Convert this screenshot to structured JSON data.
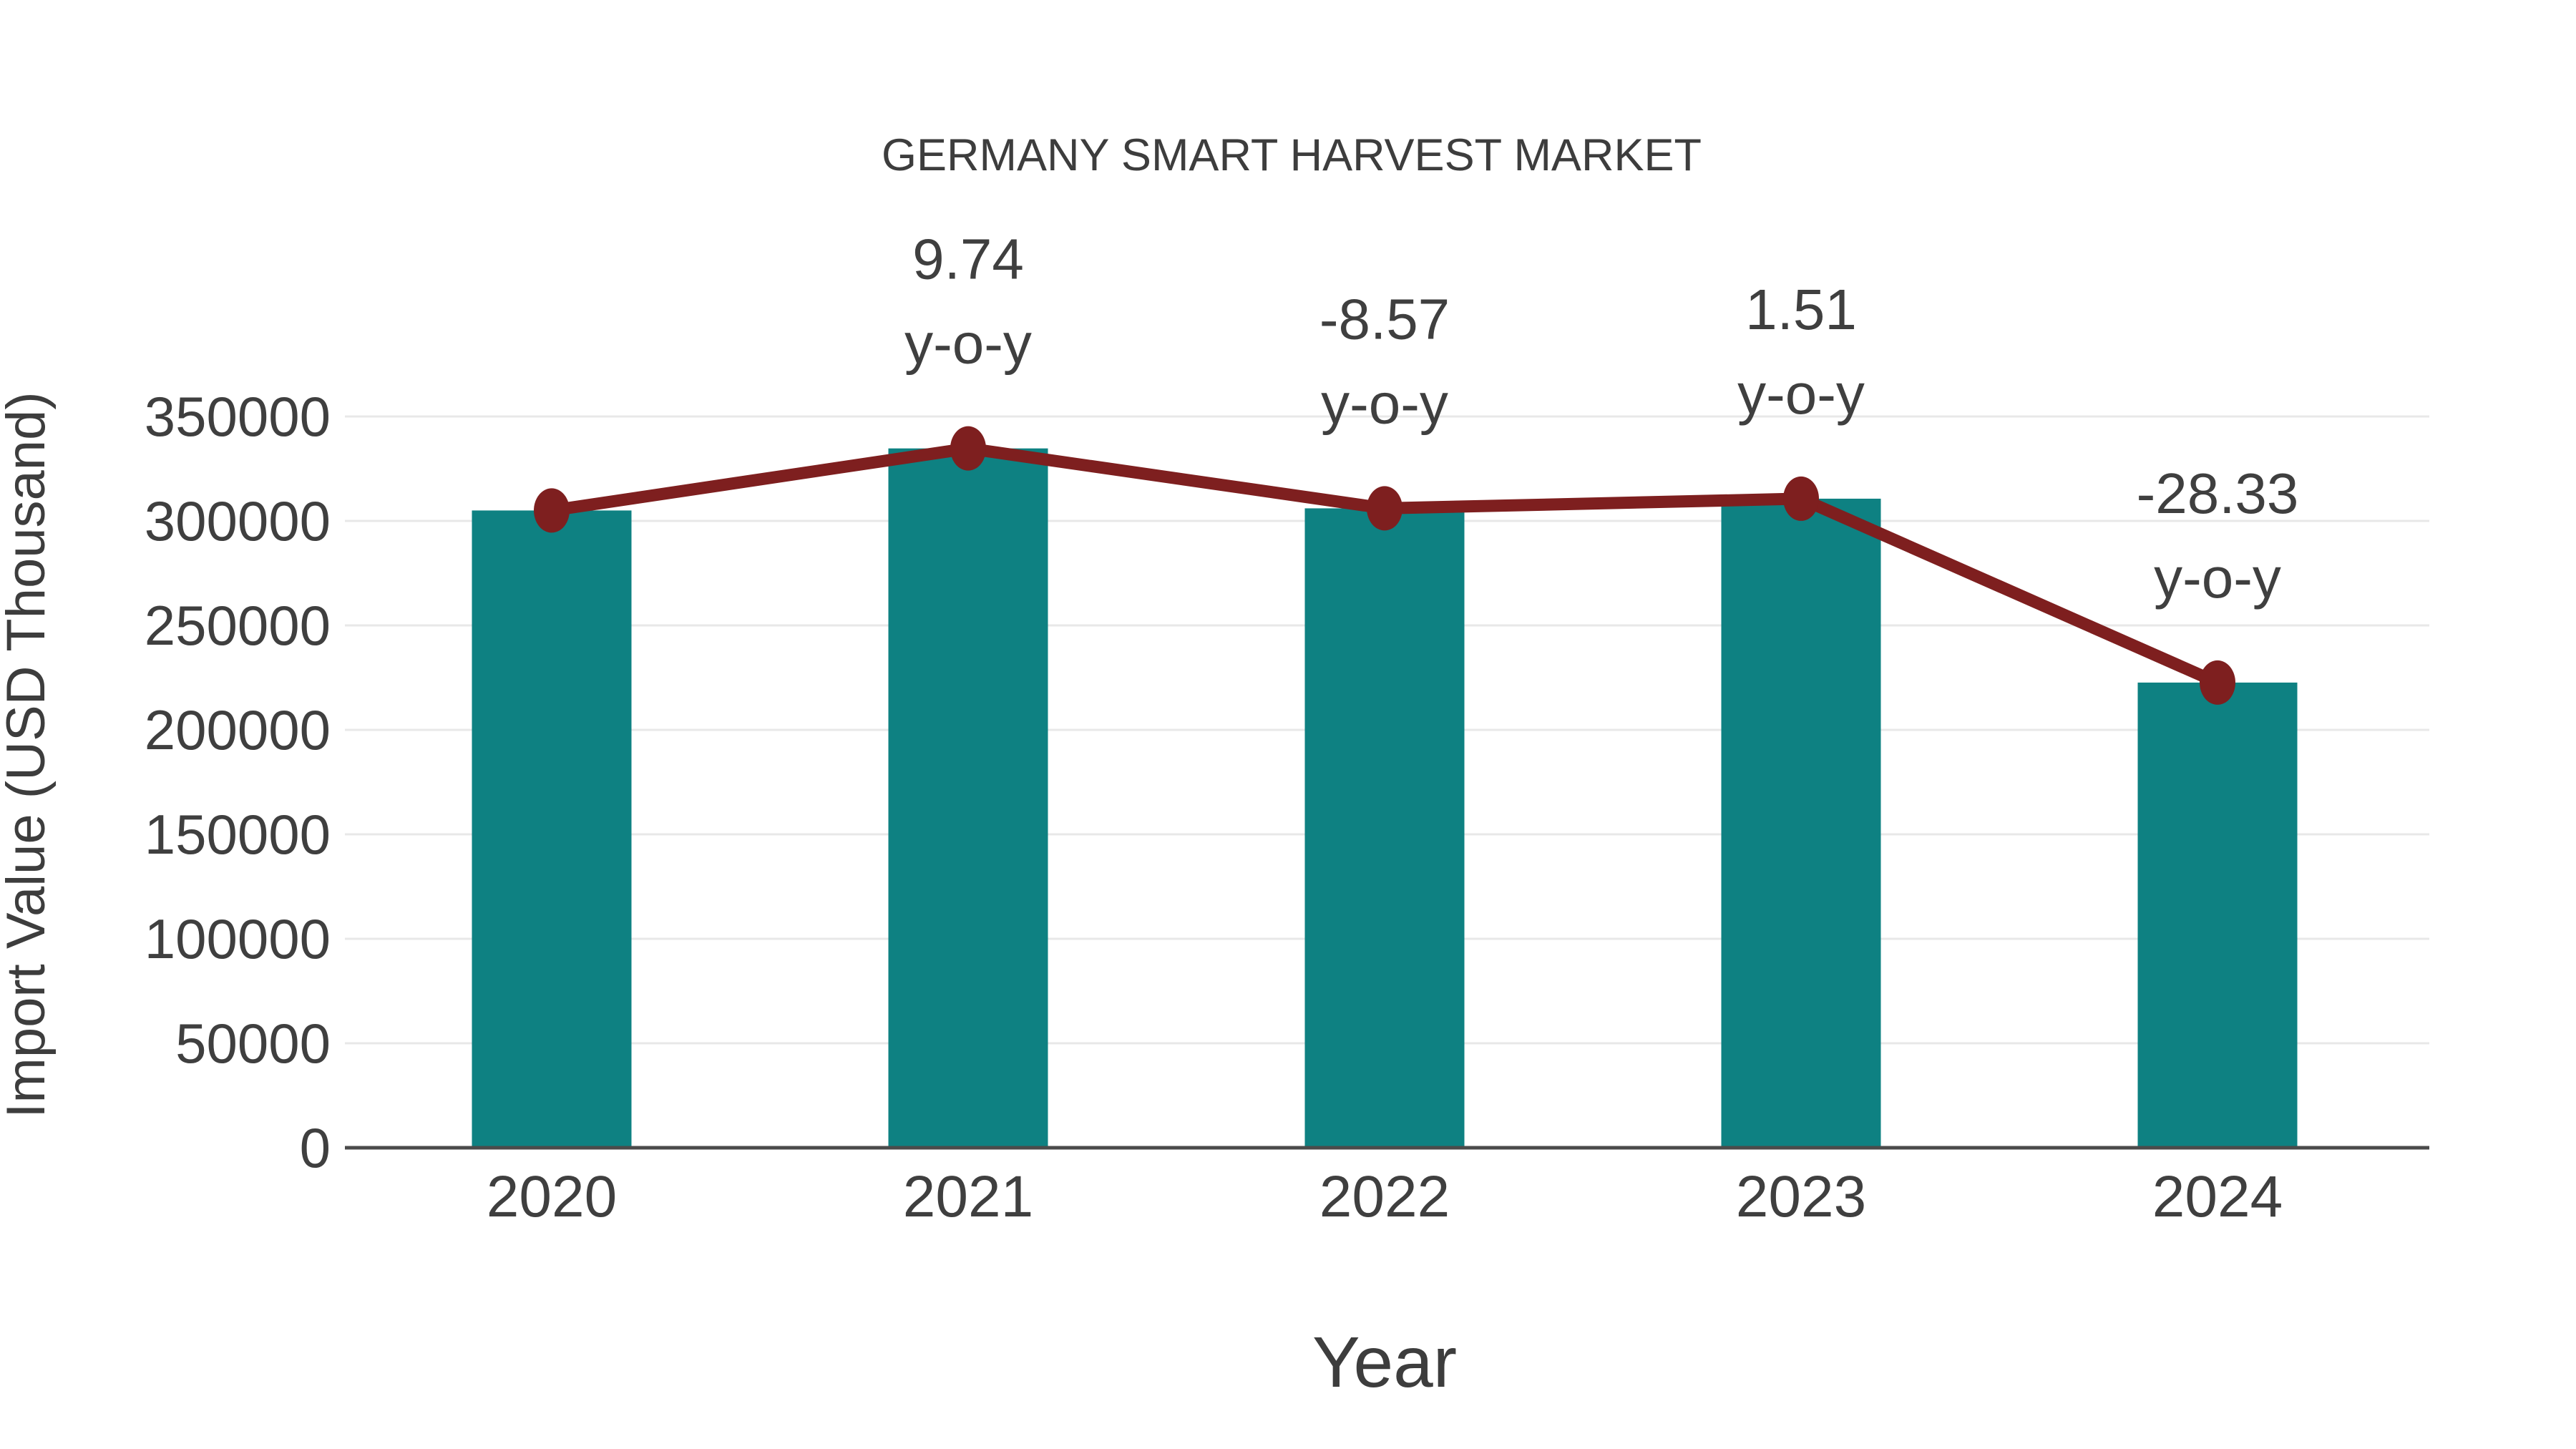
{
  "title": "GERMANY SMART HARVEST MARKET",
  "colors": {
    "bar": "#0e8182",
    "line": "#7e1f1f",
    "marker": "#7e1f1f",
    "text": "#3f3f3f",
    "grid": "#e8e8e8",
    "axis": "#4b4b4b",
    "background": "#ffffff"
  },
  "chart_data": {
    "type": "bar",
    "title": "GERMANY SMART HARVEST MARKET",
    "xlabel": "Year",
    "ylabel": "Import Value (USD Thousand)",
    "categories": [
      "2020",
      "2021",
      "2022",
      "2023",
      "2024"
    ],
    "series": [
      {
        "name": "Import Value (USD Thousand)",
        "type": "bar",
        "values": [
          305000,
          334707,
          306022,
          310643,
          222638
        ]
      },
      {
        "name": "y-o-y growth (%)",
        "type": "line",
        "values": [
          null,
          9.74,
          -8.57,
          1.51,
          -28.33
        ]
      }
    ],
    "annotations": [
      {
        "category": "2021",
        "value_text": "9.74",
        "suffix_text": "y-o-y"
      },
      {
        "category": "2022",
        "value_text": "-8.57",
        "suffix_text": "y-o-y"
      },
      {
        "category": "2023",
        "value_text": "1.51",
        "suffix_text": "y-o-y"
      },
      {
        "category": "2024",
        "value_text": "-28.33",
        "suffix_text": "y-o-y"
      }
    ],
    "y_ticks": [
      0,
      50000,
      100000,
      150000,
      200000,
      250000,
      300000,
      350000
    ],
    "ylim": [
      0,
      350000
    ],
    "grid": "horizontal",
    "legend_position": "none"
  }
}
